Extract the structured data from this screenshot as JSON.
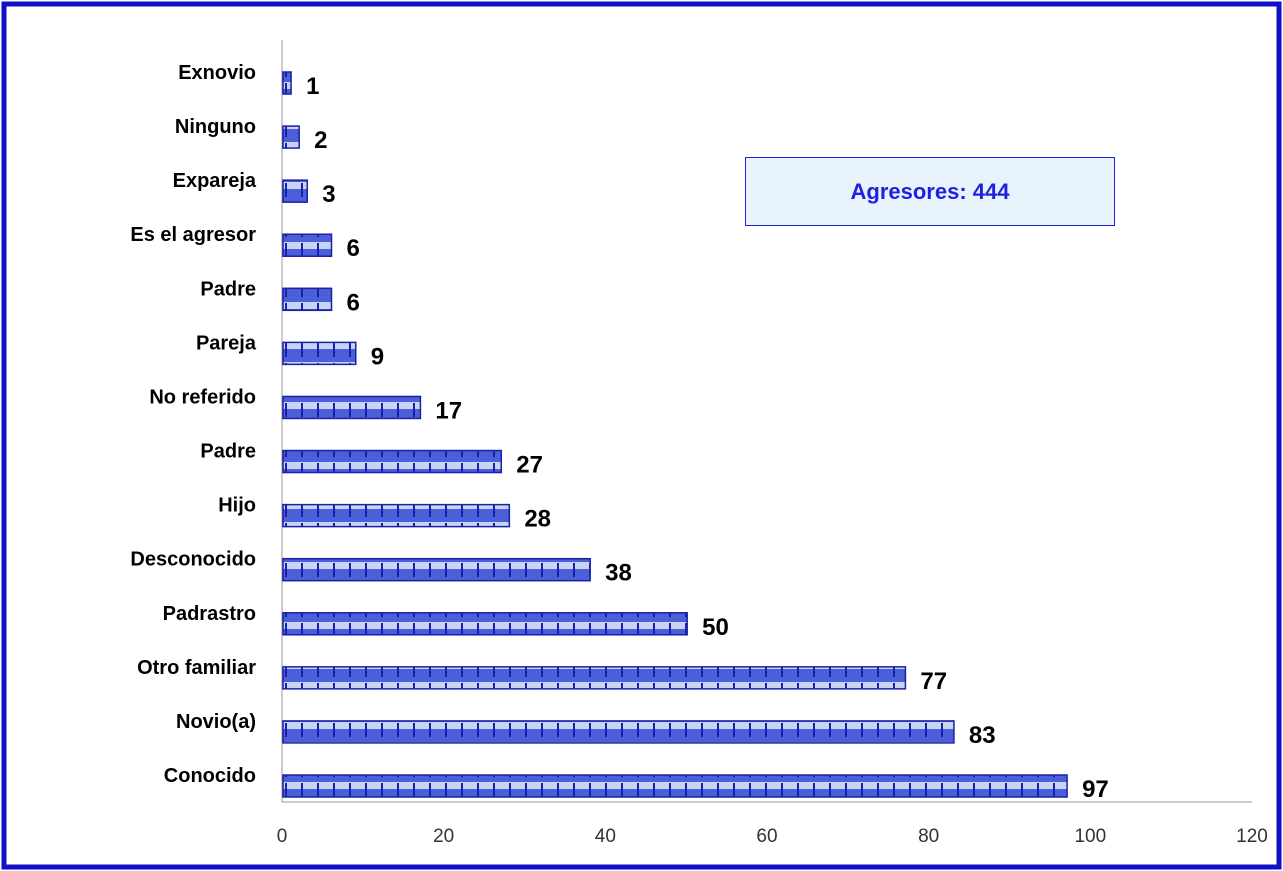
{
  "colors": {
    "frame": "#1010c8",
    "bar_fill": "#4a5fd8",
    "bar_light": "#c8d4f4",
    "bar_edge": "#1a20a8",
    "axis": "#999999",
    "box_text": "#1e22e0",
    "box_bg": "#e9f3fb"
  },
  "total_box": {
    "text": "Agresores: 444"
  },
  "chart_data": {
    "type": "bar",
    "orientation": "horizontal",
    "title": "",
    "xlabel": "",
    "ylabel": "",
    "xlim": [
      0,
      120
    ],
    "ticks": [
      0,
      20,
      40,
      60,
      80,
      100,
      120
    ],
    "tick_labels": [
      "0",
      "20",
      "40",
      "60",
      "80",
      "100",
      "120"
    ],
    "grid": false,
    "categories": [
      "Exnovio",
      "Ninguno",
      "Expareja",
      "Es el agresor",
      "Padre",
      "Pareja",
      "No referido",
      "Padre",
      "Hijo",
      "Desconocido",
      "Padrastro",
      "Otro familiar",
      "Novio(a)",
      "Conocido"
    ],
    "values": [
      1,
      2,
      3,
      6,
      6,
      9,
      17,
      27,
      28,
      38,
      50,
      77,
      83,
      97
    ],
    "value_labels": [
      "1",
      "2",
      "3",
      "6",
      "6",
      "9",
      "17",
      "27",
      "28",
      "38",
      "50",
      "77",
      "83",
      "97"
    ]
  }
}
